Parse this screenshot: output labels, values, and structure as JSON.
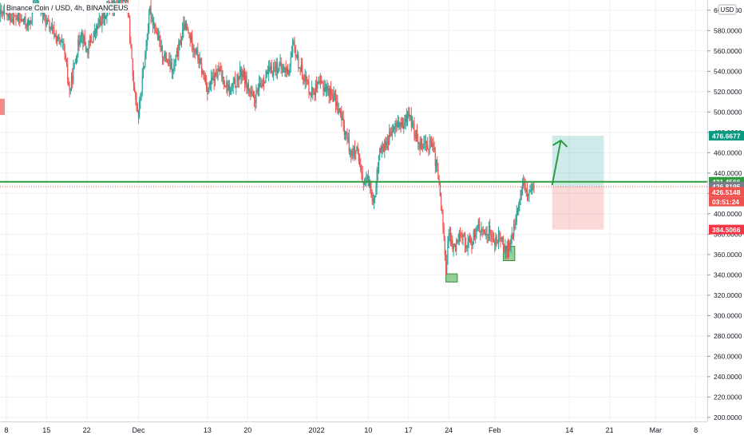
{
  "chart_data": {
    "type": "candlestick",
    "title": "Binance Coin / USD, 4h, BINANCEUS",
    "currency_label": "USD",
    "y_axis": {
      "ticks": [
        "600.0000",
        "580.0000",
        "560.0000",
        "540.0000",
        "520.0000",
        "500.0000",
        "480.0000",
        "460.0000",
        "440.0000",
        "420.0000",
        "400.0000",
        "380.0000",
        "360.0000",
        "340.0000",
        "320.0000",
        "300.0000",
        "280.0000",
        "260.0000",
        "240.0000",
        "220.0000",
        "200.0000"
      ],
      "range": [
        196,
        610
      ]
    },
    "x_axis": {
      "ticks": [
        {
          "label": "8",
          "day": 8
        },
        {
          "label": "15",
          "day": 15
        },
        {
          "label": "22",
          "day": 22
        },
        {
          "label": "Dec",
          "day": 31
        },
        {
          "label": "13",
          "day": 43
        },
        {
          "label": "20",
          "day": 50
        },
        {
          "label": "2022",
          "day": 62
        },
        {
          "label": "10",
          "day": 71
        },
        {
          "label": "17",
          "day": 78
        },
        {
          "label": "24",
          "day": 85
        },
        {
          "label": "Feb",
          "day": 93
        },
        {
          "label": "14",
          "day": 106
        },
        {
          "label": "21",
          "day": 113
        },
        {
          "label": "Mar",
          "day": 121
        },
        {
          "label": "8",
          "day": 128
        }
      ],
      "range": [
        6.9,
        130
      ]
    },
    "price_path": [
      {
        "day": 7,
        "price": 596
      },
      {
        "day": 10,
        "price": 592
      },
      {
        "day": 12,
        "price": 585
      },
      {
        "day": 13,
        "price": 610
      },
      {
        "day": 15,
        "price": 588
      },
      {
        "day": 18,
        "price": 562
      },
      {
        "day": 19,
        "price": 520
      },
      {
        "day": 21,
        "price": 580
      },
      {
        "day": 22,
        "price": 560
      },
      {
        "day": 24,
        "price": 585
      },
      {
        "day": 26,
        "price": 605
      },
      {
        "day": 29,
        "price": 612
      },
      {
        "day": 30,
        "price": 535
      },
      {
        "day": 31,
        "price": 497
      },
      {
        "day": 33,
        "price": 600
      },
      {
        "day": 35,
        "price": 560
      },
      {
        "day": 37,
        "price": 540
      },
      {
        "day": 39,
        "price": 585
      },
      {
        "day": 41,
        "price": 560
      },
      {
        "day": 43,
        "price": 523
      },
      {
        "day": 45,
        "price": 540
      },
      {
        "day": 47,
        "price": 520
      },
      {
        "day": 49,
        "price": 540
      },
      {
        "day": 51,
        "price": 510
      },
      {
        "day": 53,
        "price": 535
      },
      {
        "day": 55,
        "price": 545
      },
      {
        "day": 57,
        "price": 540
      },
      {
        "day": 58,
        "price": 565
      },
      {
        "day": 59,
        "price": 545
      },
      {
        "day": 61,
        "price": 520
      },
      {
        "day": 63,
        "price": 527
      },
      {
        "day": 65,
        "price": 515
      },
      {
        "day": 66,
        "price": 500
      },
      {
        "day": 68,
        "price": 460
      },
      {
        "day": 69,
        "price": 460
      },
      {
        "day": 70,
        "price": 430
      },
      {
        "day": 71,
        "price": 432
      },
      {
        "day": 72,
        "price": 415
      },
      {
        "day": 73,
        "price": 460
      },
      {
        "day": 75,
        "price": 478
      },
      {
        "day": 76,
        "price": 490
      },
      {
        "day": 77,
        "price": 484
      },
      {
        "day": 78,
        "price": 500
      },
      {
        "day": 79,
        "price": 480
      },
      {
        "day": 80,
        "price": 470
      },
      {
        "day": 82,
        "price": 468
      },
      {
        "day": 83,
        "price": 445
      },
      {
        "day": 84,
        "price": 390
      },
      {
        "day": 84.5,
        "price": 345
      },
      {
        "day": 85,
        "price": 378
      },
      {
        "day": 86,
        "price": 365
      },
      {
        "day": 87,
        "price": 385
      },
      {
        "day": 88,
        "price": 370
      },
      {
        "day": 89,
        "price": 372
      },
      {
        "day": 90,
        "price": 390
      },
      {
        "day": 91,
        "price": 378
      },
      {
        "day": 92,
        "price": 385
      },
      {
        "day": 93,
        "price": 370
      },
      {
        "day": 94,
        "price": 380
      },
      {
        "day": 95,
        "price": 362
      },
      {
        "day": 96,
        "price": 375
      },
      {
        "day": 97,
        "price": 405
      },
      {
        "day": 98,
        "price": 430
      },
      {
        "day": 99,
        "price": 418
      },
      {
        "day": 100,
        "price": 427
      }
    ],
    "support_line": {
      "price": 431.4566,
      "color": "#2e9c3f"
    },
    "current_price_line": {
      "price": 426.5148,
      "color": "#ef5350"
    },
    "position": {
      "entry": 426.8195,
      "target": 476.6677,
      "stop": 384.5066,
      "start_day": 103,
      "end_day": 112
    },
    "arrow": {
      "from_day": 103,
      "from_price": 428,
      "to_day": 104.5,
      "to_price": 472,
      "color": "#2e9c3f"
    },
    "zones": [
      {
        "start_day": 84.5,
        "end_day": 86.5,
        "top": 341,
        "bottom": 333,
        "color": "#6fbf73"
      },
      {
        "start_day": 94.5,
        "end_day": 96.5,
        "top": 368,
        "bottom": 354,
        "color": "#6fbf73"
      }
    ],
    "left_marker": {
      "top": 513,
      "bottom": 497,
      "color": "#f48a85"
    },
    "price_labels": [
      {
        "text": "476.6677",
        "price": 476.6677,
        "bg": "#089981",
        "fg": "#ffffff"
      },
      {
        "text": "431.4566",
        "price": 431.4566,
        "bg": "#2e9c3f",
        "fg": "#ffffff"
      },
      {
        "text": "426.8195",
        "price": 426.8195,
        "bg": "#787b86",
        "fg": "#ffffff"
      },
      {
        "text": "426.5148",
        "price": 421.5,
        "bg": "#ef5350",
        "fg": "#ffffff"
      },
      {
        "text": "03:51:24",
        "price": 412.0,
        "bg": "#ef5350",
        "fg": "#ffffff"
      },
      {
        "text": "384.5066",
        "price": 384.5066,
        "bg": "#f23645",
        "fg": "#ffffff"
      }
    ],
    "colors": {
      "up": "#26a69a",
      "down": "#ef5350",
      "grid": "#eef0f4",
      "axis_text": "#131722"
    }
  }
}
